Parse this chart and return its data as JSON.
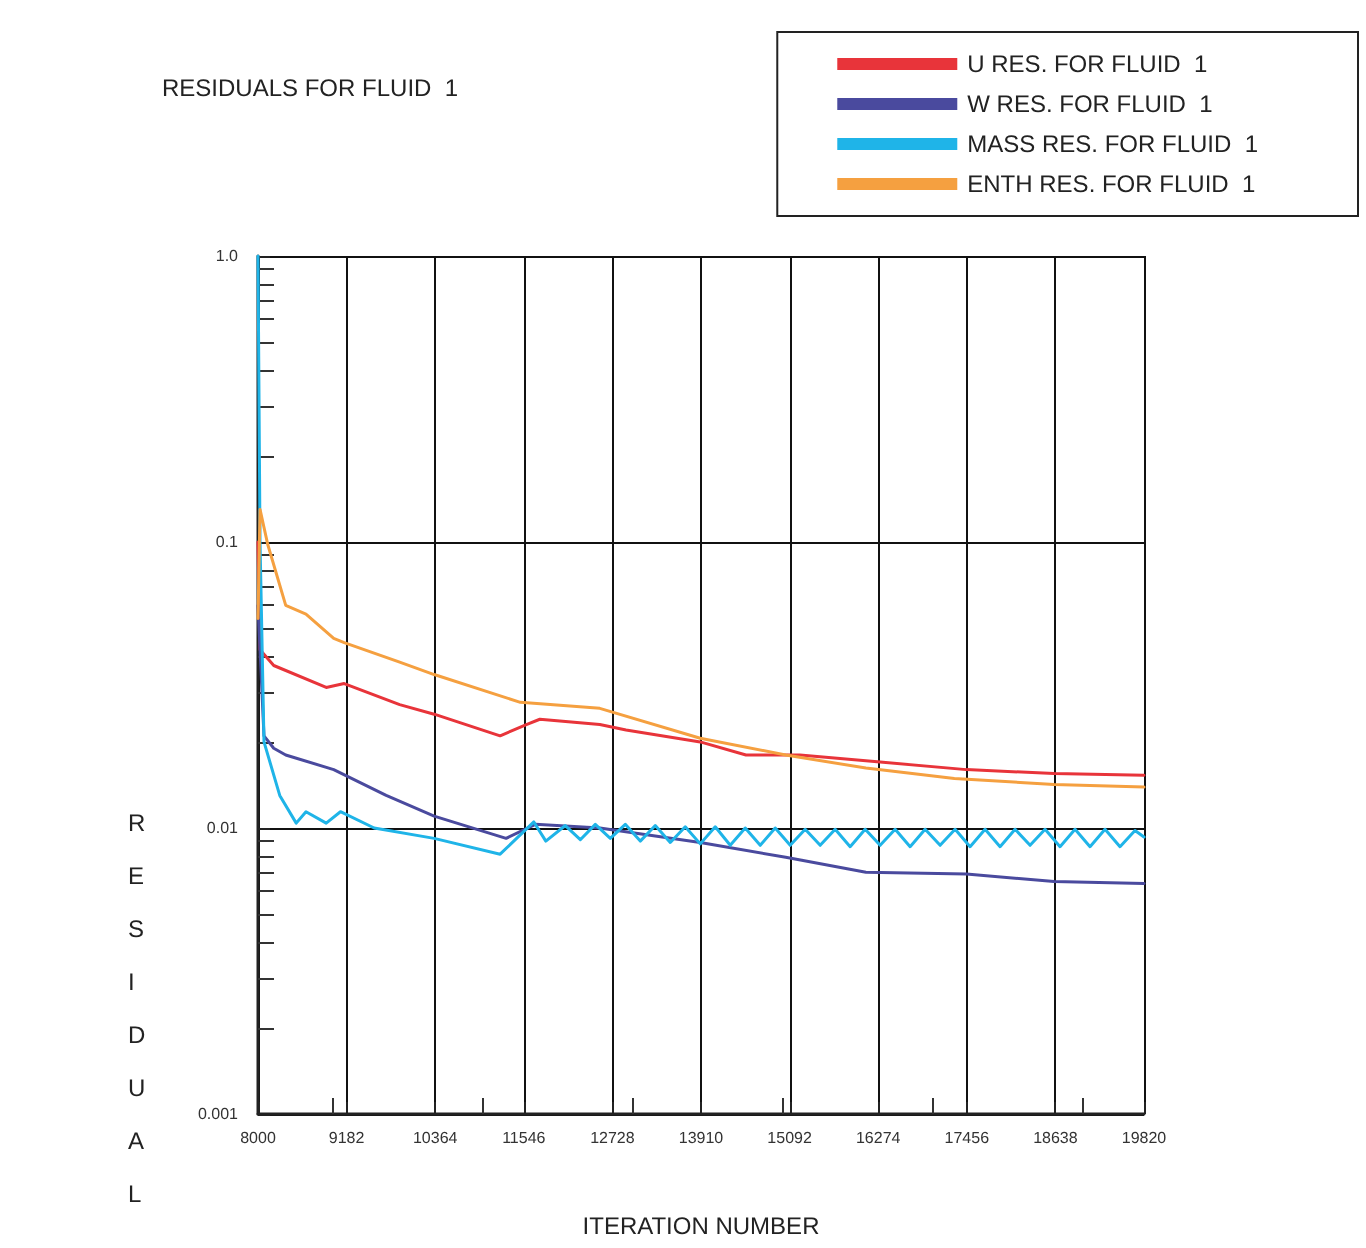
{
  "chart_data": {
    "type": "line",
    "title": "RESIDUALS FOR FLUID  1",
    "xlabel": "ITERATION NUMBER",
    "ylabel": "RESIDUAL",
    "log": "y",
    "grid": true,
    "legend": "top right",
    "marker": "none",
    "line_style": "solid",
    "xlim": [
      8000,
      19820
    ],
    "xticks": [
      8000,
      9182,
      10364,
      11546,
      12728,
      13910,
      15092,
      16274,
      17456,
      18638,
      19820
    ],
    "ylim": [
      0.001,
      1
    ],
    "yticks": [
      0.001,
      0.01,
      0.1,
      {
        "value": 1,
        "label": "1.0"
      }
    ],
    "series": [
      {
        "name": "U RES. FOR FLUID  1",
        "color": "#e8343a",
        "x": [
          8000,
          8027,
          8210,
          8910,
          9150,
          9890,
          10350,
          11230,
          11580,
          11760,
          12560,
          12910,
          13900,
          14510,
          15230,
          16300,
          17450,
          18620,
          19820
        ],
        "values": [
          0.1,
          0.042,
          0.037,
          0.031,
          0.032,
          0.027,
          0.025,
          0.021,
          0.023,
          0.024,
          0.023,
          0.022,
          0.02,
          0.018,
          0.018,
          0.017,
          0.016,
          0.0155,
          0.0153
        ]
      },
      {
        "name": "W RES. FOR FLUID  1",
        "color": "#4a4a9e",
        "x": [
          8000,
          8080,
          8210,
          8370,
          9010,
          9710,
          10350,
          11310,
          11700,
          12560,
          13900,
          15040,
          16110,
          17450,
          18620,
          19820
        ],
        "values": [
          0.06,
          0.021,
          0.019,
          0.018,
          0.016,
          0.013,
          0.011,
          0.0092,
          0.0103,
          0.01,
          0.0089,
          0.0079,
          0.007,
          0.0069,
          0.0065,
          0.0064
        ]
      },
      {
        "name": "MASS RES. FOR FLUID  1",
        "color": "#1fb4e8",
        "x": [
          8000,
          8027,
          8080,
          8290,
          8510,
          8640,
          8910,
          9100,
          9550,
          10350,
          11230,
          11680,
          11840,
          12100,
          12300,
          12500,
          12700,
          12900,
          13100,
          13300,
          13500,
          13700,
          13900,
          14100,
          14300,
          14500,
          14700,
          14900,
          15100,
          15300,
          15500,
          15700,
          15900,
          16100,
          16300,
          16500,
          16700,
          16900,
          17100,
          17300,
          17500,
          17700,
          17900,
          18100,
          18300,
          18500,
          18700,
          18900,
          19100,
          19300,
          19500,
          19700,
          19820
        ],
        "values": [
          1,
          0.1,
          0.02,
          0.013,
          0.0104,
          0.0114,
          0.0104,
          0.0114,
          0.01,
          0.0092,
          0.0081,
          0.0105,
          0.009,
          0.0102,
          0.0091,
          0.0103,
          0.0092,
          0.0103,
          0.009,
          0.0102,
          0.0089,
          0.0101,
          0.0088,
          0.0101,
          0.0087,
          0.01,
          0.0087,
          0.01,
          0.0087,
          0.0099,
          0.0087,
          0.0099,
          0.0086,
          0.0099,
          0.0087,
          0.0099,
          0.0086,
          0.0099,
          0.0087,
          0.0099,
          0.0086,
          0.0099,
          0.0086,
          0.0099,
          0.0087,
          0.0099,
          0.0086,
          0.0099,
          0.0086,
          0.0099,
          0.0086,
          0.0098,
          0.0093
        ]
      },
      {
        "name": "ENTH RES. FOR FLUID  1",
        "color": "#f5a040",
        "x": [
          8000,
          8027,
          8130,
          8370,
          8640,
          9010,
          9150,
          9890,
          10350,
          11500,
          12560,
          13900,
          15040,
          16110,
          17290,
          18620,
          19820
        ],
        "values": [
          0.054,
          0.13,
          0.098,
          0.06,
          0.056,
          0.046,
          0.0445,
          0.038,
          0.0344,
          0.0275,
          0.0262,
          0.0206,
          0.018,
          0.0162,
          0.0149,
          0.0142,
          0.0139
        ]
      }
    ]
  }
}
